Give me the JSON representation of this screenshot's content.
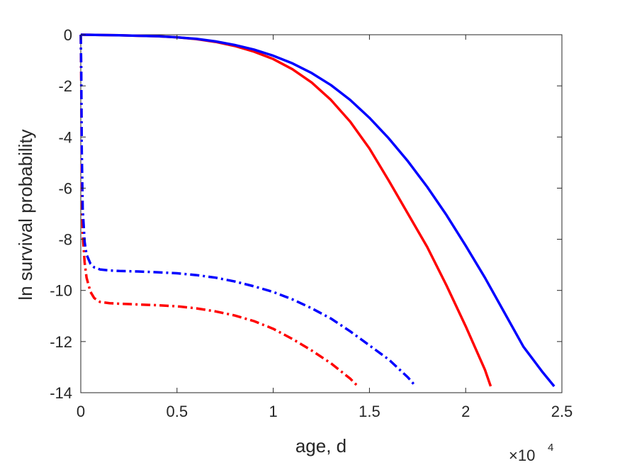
{
  "chart_data": {
    "type": "line",
    "title": "",
    "xlabel": "age, d",
    "ylabel": "ln survival probability",
    "x_multiplier_label": "×10",
    "x_multiplier_exponent": "4",
    "xlim": [
      0,
      25000
    ],
    "ylim": [
      -14,
      0
    ],
    "x_ticks": [
      0,
      5000,
      10000,
      15000,
      20000,
      25000
    ],
    "x_tick_labels": [
      "0",
      "0.5",
      "1",
      "1.5",
      "2",
      "2.5"
    ],
    "y_ticks": [
      0,
      -2,
      -4,
      -6,
      -8,
      -10,
      -12,
      -14
    ],
    "y_tick_labels": [
      "0",
      "-2",
      "-4",
      "-6",
      "-8",
      "-10",
      "-12",
      "-14"
    ],
    "grid": false,
    "legend": "none",
    "series": [
      {
        "color": "#ff0000",
        "line_style": "solid",
        "x": [
          0,
          1000,
          2000,
          3000,
          4000,
          5000,
          6000,
          7000,
          8000,
          9000,
          10000,
          11000,
          12000,
          13000,
          14000,
          15000,
          16000,
          17000,
          18000,
          19000,
          20000,
          21000,
          21300
        ],
        "y": [
          0,
          -0.01,
          -0.02,
          -0.04,
          -0.06,
          -0.1,
          -0.17,
          -0.28,
          -0.44,
          -0.66,
          -0.95,
          -1.35,
          -1.87,
          -2.55,
          -3.4,
          -4.45,
          -5.7,
          -7.0,
          -8.3,
          -9.8,
          -11.4,
          -13.1,
          -13.75
        ]
      },
      {
        "color": "#0000ff",
        "line_style": "solid",
        "x": [
          0,
          1000,
          2000,
          3000,
          4000,
          5000,
          6000,
          7000,
          8000,
          9000,
          10000,
          11000,
          12000,
          13000,
          14000,
          15000,
          16000,
          17000,
          18000,
          19000,
          20000,
          21000,
          22000,
          23000,
          24000,
          24600
        ],
        "y": [
          0,
          -0.01,
          -0.02,
          -0.04,
          -0.06,
          -0.1,
          -0.16,
          -0.26,
          -0.4,
          -0.58,
          -0.82,
          -1.12,
          -1.5,
          -1.97,
          -2.55,
          -3.25,
          -4.05,
          -4.95,
          -5.95,
          -7.05,
          -8.25,
          -9.5,
          -10.85,
          -12.2,
          -13.2,
          -13.75
        ]
      },
      {
        "color": "#ff0000",
        "line_style": "dash-dot",
        "x": [
          0,
          25,
          50,
          100,
          200,
          300,
          500,
          700,
          1000,
          1500,
          2000,
          3000,
          4000,
          5000,
          6000,
          7000,
          8000,
          9000,
          10000,
          11000,
          12000,
          13000,
          14000,
          14400
        ],
        "y": [
          0,
          -2.0,
          -5.5,
          -7.8,
          -8.9,
          -9.5,
          -10.05,
          -10.3,
          -10.45,
          -10.5,
          -10.52,
          -10.55,
          -10.58,
          -10.62,
          -10.7,
          -10.82,
          -10.98,
          -11.2,
          -11.5,
          -11.9,
          -12.35,
          -12.85,
          -13.45,
          -13.75
        ]
      },
      {
        "color": "#0000ff",
        "line_style": "dash-dot",
        "x": [
          0,
          25,
          50,
          100,
          200,
          300,
          500,
          700,
          1000,
          1500,
          2000,
          3000,
          4000,
          5000,
          6000,
          7000,
          8000,
          9000,
          10000,
          11000,
          12000,
          13000,
          14000,
          15000,
          16000,
          17000,
          17400
        ],
        "y": [
          0,
          -1.5,
          -4.5,
          -6.8,
          -8.1,
          -8.6,
          -8.95,
          -9.1,
          -9.18,
          -9.22,
          -9.24,
          -9.26,
          -9.29,
          -9.33,
          -9.4,
          -9.5,
          -9.65,
          -9.84,
          -10.06,
          -10.35,
          -10.7,
          -11.1,
          -11.6,
          -12.15,
          -12.7,
          -13.4,
          -13.75
        ]
      }
    ]
  }
}
